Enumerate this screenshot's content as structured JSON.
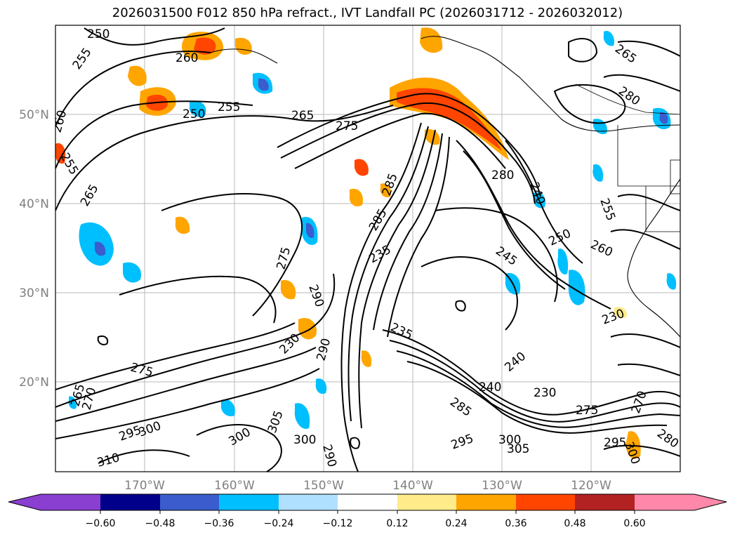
{
  "title": "2026031500 F012 850 hPa refract., IVT Landfall PC (2026031712 - 2026032012)",
  "axes": {
    "lat_labels": [
      "50°N",
      "40°N",
      "30°N",
      "20°N"
    ],
    "lon_labels": [
      "170°W",
      "160°W",
      "150°W",
      "140°W",
      "130°W",
      "120°W"
    ]
  },
  "contour_labels": [
    "250",
    "255",
    "260",
    "250",
    "255",
    "260",
    "255",
    "265",
    "275",
    "265",
    "265",
    "285",
    "280",
    "280",
    "285",
    "245",
    "235",
    "240",
    "255",
    "260",
    "250",
    "275",
    "290",
    "230",
    "235",
    "230",
    "290",
    "275",
    "240",
    "240",
    "230",
    "265",
    "270",
    "285",
    "295",
    "300",
    "305",
    "300",
    "300",
    "290",
    "295",
    "300",
    "305",
    "295",
    "310",
    "275",
    "270",
    "280",
    "300"
  ],
  "colorbar": {
    "colors": [
      "#8B3FD0",
      "#00008B",
      "#3A5CCC",
      "#00BFFF",
      "#B0E0FF",
      "#FFFFFF",
      "#FFEB8A",
      "#FFA500",
      "#FF4500",
      "#B22222",
      "#FF88AA"
    ],
    "tick_labels": [
      "−0.60",
      "−0.48",
      "−0.36",
      "−0.24",
      "−0.12",
      "0.12",
      "0.24",
      "0.36",
      "0.48",
      "0.60"
    ]
  }
}
